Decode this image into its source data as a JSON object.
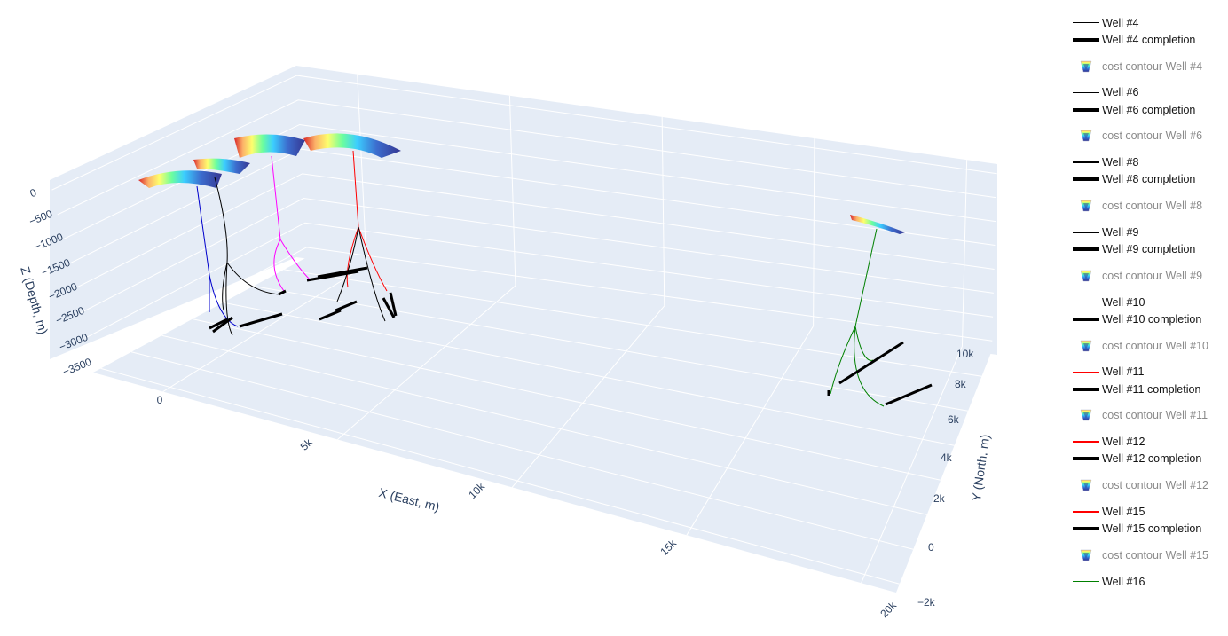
{
  "chart_data": {
    "type": "scatter3d",
    "axes": {
      "x": {
        "title": "X (East, m)",
        "ticks": [
          0,
          5000,
          10000,
          15000,
          20000
        ],
        "tick_labels": [
          "0",
          "5k",
          "10k",
          "15k",
          "20k"
        ]
      },
      "y": {
        "title": "Y (North, m)",
        "ticks": [
          -2000,
          0,
          2000,
          4000,
          6000,
          8000,
          10000
        ],
        "tick_labels": [
          "−2k",
          "0",
          "2k",
          "4k",
          "6k",
          "8k",
          "10k"
        ]
      },
      "z": {
        "title": "Z (Depth, m)",
        "ticks": [
          0,
          -500,
          -1000,
          -1500,
          -2000,
          -2500,
          -3000,
          -3500
        ],
        "tick_labels": [
          "0",
          "−500",
          "−1000",
          "−1500",
          "−2000",
          "−2500",
          "−3000",
          "−3500"
        ]
      }
    },
    "series": [
      {
        "name": "Well #4",
        "kind": "trajectory",
        "color": "#000000"
      },
      {
        "name": "Well #4 completion",
        "kind": "completion",
        "color": "#000000"
      },
      {
        "name": "cost contour Well #4",
        "kind": "surface",
        "visible": "legendonly"
      },
      {
        "name": "Well #6",
        "kind": "trajectory",
        "color": "#000000"
      },
      {
        "name": "Well #6 completion",
        "kind": "completion",
        "color": "#000000"
      },
      {
        "name": "cost contour Well #6",
        "kind": "surface",
        "visible": "legendonly"
      },
      {
        "name": "Well #8",
        "kind": "trajectory",
        "color": "#000000"
      },
      {
        "name": "Well #8 completion",
        "kind": "completion",
        "color": "#000000"
      },
      {
        "name": "cost contour Well #8",
        "kind": "surface",
        "visible": "legendonly"
      },
      {
        "name": "Well #9",
        "kind": "trajectory",
        "color": "#000000"
      },
      {
        "name": "Well #9 completion",
        "kind": "completion",
        "color": "#000000"
      },
      {
        "name": "cost contour Well #9",
        "kind": "surface",
        "visible": "legendonly"
      },
      {
        "name": "Well #10",
        "kind": "trajectory",
        "color": "#ff0000"
      },
      {
        "name": "Well #10 completion",
        "kind": "completion",
        "color": "#000000"
      },
      {
        "name": "cost contour Well #10",
        "kind": "surface",
        "visible": "legendonly"
      },
      {
        "name": "Well #11",
        "kind": "trajectory",
        "color": "#ff0000"
      },
      {
        "name": "Well #11 completion",
        "kind": "completion",
        "color": "#000000"
      },
      {
        "name": "cost contour Well #11",
        "kind": "surface",
        "visible": "legendonly"
      },
      {
        "name": "Well #12",
        "kind": "trajectory",
        "color": "#ff0000"
      },
      {
        "name": "Well #12 completion",
        "kind": "completion",
        "color": "#000000"
      },
      {
        "name": "cost contour Well #12",
        "kind": "surface",
        "visible": "legendonly"
      },
      {
        "name": "Well #15",
        "kind": "trajectory",
        "color": "#ff0000"
      },
      {
        "name": "Well #15 completion",
        "kind": "completion",
        "color": "#000000"
      },
      {
        "name": "cost contour Well #15",
        "kind": "surface",
        "visible": "legendonly"
      },
      {
        "name": "Well #16",
        "kind": "trajectory",
        "color": "#008000"
      }
    ],
    "scene_background": "#e5ecf6",
    "grid": true
  },
  "colors": {
    "scene_bg": "#e5ecf6",
    "grid": "#ffffff",
    "tick_text": "#2a3f5f",
    "blue_well": "#0000cc",
    "magenta_well": "#ff00ff",
    "red_well": "#ff0000",
    "green_well": "#008000"
  }
}
